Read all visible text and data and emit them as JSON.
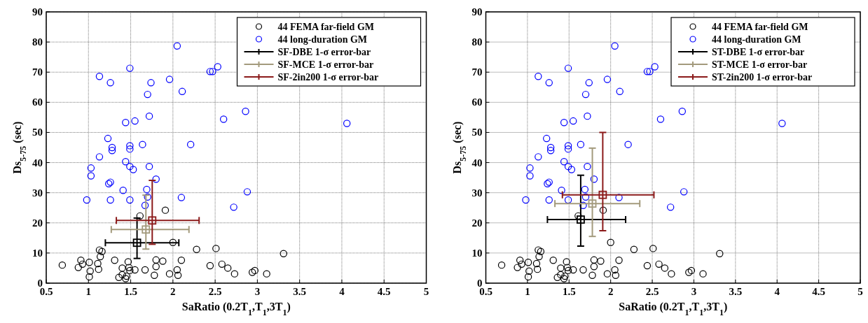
{
  "chart_data": [
    {
      "type": "scatter",
      "xlabel": "SaRatio (0.2T$_{1}$,T$_{1}$,3T$_{1}$)",
      "ylabel": "Ds$_{5-75}$ (sec)",
      "xlim": [
        0.5,
        5
      ],
      "ylim": [
        0,
        90
      ],
      "xticks": [
        0.5,
        1,
        1.5,
        2,
        2.5,
        3,
        3.5,
        4,
        4.5,
        5
      ],
      "yticks": [
        0,
        10,
        20,
        30,
        40,
        50,
        60,
        70,
        80,
        90
      ],
      "grid": true,
      "legend": "top right",
      "marker": "circle",
      "series": [
        {
          "name": "44 FEMA far-field GM",
          "color": "#000000",
          "x": [
            0.69,
            0.88,
            0.91,
            0.93,
            1.01,
            1.02,
            1.01,
            1.11,
            1.12,
            1.13,
            1.16,
            1.14,
            1.31,
            1.36,
            1.4,
            1.4,
            1.44,
            1.47,
            1.48,
            1.49,
            1.55,
            1.45,
            1.61,
            1.67,
            1.78,
            1.8,
            1.8,
            1.88,
            1.91,
            1.96,
            2.0,
            2.05,
            2.06,
            2.1,
            2.28,
            2.44,
            2.51,
            2.58,
            2.65,
            2.73,
            2.94,
            2.97,
            3.11,
            3.31
          ],
          "values": [
            6.0,
            5.2,
            7.6,
            6.3,
            6.9,
            4.0,
            2.1,
            6.5,
            4.6,
            11.0,
            10.5,
            8.8,
            7.6,
            1.9,
            5.0,
            2.8,
            1.5,
            7.1,
            5.2,
            4.2,
            4.4,
            2.3,
            22.3,
            4.4,
            2.6,
            7.7,
            5.5,
            7.3,
            24.2,
            3.1,
            13.5,
            4.4,
            2.6,
            7.6,
            11.2,
            5.8,
            11.5,
            6.3,
            5.0,
            3.1,
            3.6,
            4.2,
            3.1,
            9.8
          ]
        },
        {
          "name": "44 long-duration GM",
          "color": "#0000ff",
          "x": [
            2.05,
            1.49,
            2.53,
            2.44,
            2.47,
            1.13,
            1.26,
            1.74,
            1.96,
            2.11,
            1.7,
            1.72,
            1.44,
            1.55,
            2.6,
            2.86,
            4.06,
            1.23,
            1.28,
            1.28,
            1.49,
            1.49,
            1.64,
            2.21,
            1.13,
            1.44,
            1.49,
            1.53,
            1.72,
            1.03,
            1.03,
            1.26,
            1.24,
            1.8,
            1.41,
            1.69,
            1.7,
            2.88,
            0.98,
            1.26,
            1.49,
            2.1,
            1.67,
            2.72
          ],
          "values": [
            78.7,
            71.3,
            71.8,
            70.2,
            70.2,
            68.6,
            66.5,
            66.5,
            67.6,
            63.6,
            62.6,
            55.4,
            53.3,
            53.8,
            54.4,
            57.0,
            53.0,
            48.0,
            45.0,
            44.0,
            45.6,
            44.5,
            46.0,
            46.0,
            41.9,
            40.3,
            38.7,
            37.7,
            38.7,
            38.2,
            35.6,
            33.5,
            33.0,
            34.5,
            30.8,
            31.1,
            28.6,
            30.3,
            27.6,
            27.6,
            27.6,
            28.4,
            25.8,
            25.2
          ]
        },
        {
          "name": "SF-DBE 1-σ error-bar",
          "color": "#000000",
          "marker": "square",
          "x": [
            1.575
          ],
          "values": [
            13.4
          ],
          "errors": [
            [
              8.2,
              21.6
            ]
          ],
          "xerrors": [
            [
              1.2,
              2.07
            ]
          ]
        },
        {
          "name": "SF-MCE 1-σ error-bar",
          "color": "#a39a7c",
          "marker": "square",
          "x": [
            1.68
          ],
          "values": [
            17.8
          ],
          "errors": [
            [
              11.3,
              29.2
            ]
          ],
          "xerrors": [
            [
              1.27,
              2.19
            ]
          ]
        },
        {
          "name": "SF-2in200 1-σ error-bar",
          "color": "#8b1a1a",
          "marker": "square",
          "x": [
            1.755
          ],
          "values": [
            20.8
          ],
          "errors": [
            [
              12.9,
              34.1
            ]
          ],
          "xerrors": [
            [
              1.33,
              2.31
            ]
          ]
        }
      ]
    },
    {
      "type": "scatter",
      "xlabel": "SaRatio (0.2T$_{1}$,T$_{1}$,3T$_{1}$)",
      "ylabel": "Ds$_{5-75}$ (sec)",
      "xlim": [
        0.5,
        5
      ],
      "ylim": [
        0,
        90
      ],
      "xticks": [
        0.5,
        1,
        1.5,
        2,
        2.5,
        3,
        3.5,
        4,
        4.5,
        5
      ],
      "yticks": [
        0,
        10,
        20,
        30,
        40,
        50,
        60,
        70,
        80,
        90
      ],
      "grid": true,
      "legend": "top right",
      "marker": "circle",
      "series": [
        {
          "name": "44 FEMA far-field GM",
          "color": "#000000",
          "x": [
            0.69,
            0.88,
            0.91,
            0.93,
            1.01,
            1.02,
            1.01,
            1.11,
            1.12,
            1.13,
            1.16,
            1.14,
            1.31,
            1.36,
            1.4,
            1.4,
            1.44,
            1.47,
            1.48,
            1.49,
            1.55,
            1.45,
            1.61,
            1.67,
            1.78,
            1.8,
            1.8,
            1.88,
            1.91,
            1.96,
            2.0,
            2.05,
            2.06,
            2.1,
            2.28,
            2.44,
            2.51,
            2.58,
            2.65,
            2.73,
            2.94,
            2.97,
            3.11,
            3.31
          ],
          "values": [
            6.0,
            5.2,
            7.6,
            6.3,
            6.9,
            4.0,
            2.1,
            6.5,
            4.6,
            11.0,
            10.5,
            8.8,
            7.6,
            1.9,
            5.0,
            2.8,
            1.5,
            7.1,
            5.2,
            4.2,
            4.4,
            2.3,
            22.3,
            4.4,
            2.6,
            7.7,
            5.5,
            7.3,
            24.2,
            3.1,
            13.5,
            4.4,
            2.6,
            7.6,
            11.2,
            5.8,
            11.5,
            6.3,
            5.0,
            3.1,
            3.6,
            4.2,
            3.1,
            9.8
          ]
        },
        {
          "name": "44 long-duration GM",
          "color": "#0000ff",
          "x": [
            2.05,
            1.49,
            2.53,
            2.44,
            2.47,
            1.13,
            1.26,
            1.74,
            1.96,
            2.11,
            1.7,
            1.72,
            1.44,
            1.55,
            2.6,
            2.86,
            4.06,
            1.23,
            1.28,
            1.28,
            1.49,
            1.49,
            1.64,
            2.21,
            1.13,
            1.44,
            1.49,
            1.53,
            1.72,
            1.03,
            1.03,
            1.26,
            1.24,
            1.8,
            1.41,
            1.69,
            1.7,
            2.88,
            0.98,
            1.26,
            1.49,
            2.1,
            1.67,
            2.72
          ],
          "values": [
            78.7,
            71.3,
            71.8,
            70.2,
            70.2,
            68.6,
            66.5,
            66.5,
            67.6,
            63.6,
            62.6,
            55.4,
            53.3,
            53.8,
            54.4,
            57.0,
            53.0,
            48.0,
            45.0,
            44.0,
            45.6,
            44.5,
            46.0,
            46.0,
            41.9,
            40.3,
            38.7,
            37.7,
            38.7,
            38.2,
            35.6,
            33.5,
            33.0,
            34.5,
            30.8,
            31.1,
            28.6,
            30.3,
            27.6,
            27.6,
            27.6,
            28.4,
            25.8,
            25.2
          ]
        },
        {
          "name": "ST-DBE 1-σ error-bar",
          "color": "#000000",
          "marker": "square",
          "x": [
            1.64
          ],
          "values": [
            21.1
          ],
          "errors": [
            [
              12.3,
              35.8
            ]
          ],
          "xerrors": [
            [
              1.24,
              2.18
            ]
          ]
        },
        {
          "name": "ST-MCE 1-σ error-bar",
          "color": "#a39a7c",
          "marker": "square",
          "x": [
            1.78
          ],
          "values": [
            26.4
          ],
          "errors": [
            [
              15.5,
              44.8
            ]
          ],
          "xerrors": [
            [
              1.33,
              2.35
            ]
          ]
        },
        {
          "name": "ST-2in200 1-σ error-bar",
          "color": "#8b1a1a",
          "marker": "square",
          "x": [
            1.905
          ],
          "values": [
            29.3
          ],
          "errors": [
            [
              17.4,
              50.0
            ]
          ],
          "xerrors": [
            [
              1.42,
              2.52
            ]
          ]
        }
      ]
    }
  ]
}
